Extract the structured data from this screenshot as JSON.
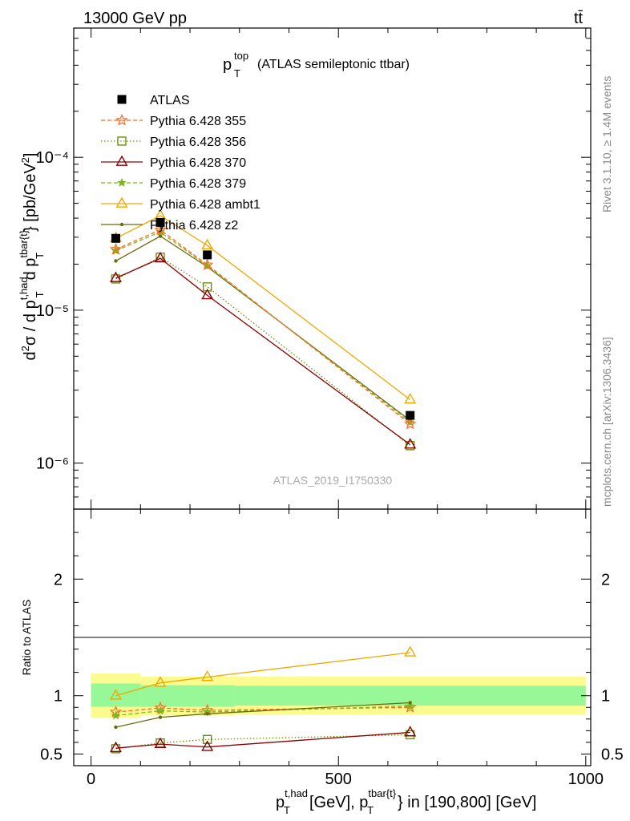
{
  "header": {
    "energy": "13000 GeV pp",
    "process": "tt̄",
    "title_main": "p",
    "title_sup": "top",
    "title_sub": "T",
    "title_rest": "(ATLAS semileptonic ttbar)"
  },
  "side_labels": {
    "rivet": "Rivet 3.1.10, ≥ 1.4M events",
    "mcplots": "mcplots.cern.ch [arXiv:1306.3436]"
  },
  "analysis_id": "ATLAS_2019_I1750330",
  "colors": {
    "data": "#000000",
    "p355": "#ff6820",
    "p356": "#6b8e10",
    "p370": "#8b0000",
    "p379": "#7eb520",
    "ambt1": "#f0a800",
    "z2": "#6b6b10",
    "band_inner": "#98f898",
    "band_outer": "#fbfb90"
  },
  "chart_data": [
    {
      "type": "line",
      "panel": "main",
      "yscale": "log",
      "ylabel": "d²σ / d p_T^{t,had} d p_T^{tbar{t}} [pb/GeV²]",
      "xlim": [
        -35,
        1010
      ],
      "ylim": [
        5e-07,
        0.0007
      ],
      "ytick_labels": [
        "10⁻⁴",
        "10⁻⁵",
        "10⁻⁶"
      ],
      "legend_position": "top-left",
      "x": [
        50,
        140,
        235,
        645
      ],
      "series": [
        {
          "key": "data",
          "name": "ATLAS",
          "marker": "square",
          "values": [
            2.95e-05,
            3.75e-05,
            2.3e-05,
            2.05e-06
          ]
        },
        {
          "key": "p355",
          "name": "Pythia 6.428 355",
          "marker": "star-open",
          "dash": "dashed",
          "values": [
            2.5e-05,
            3.35e-05,
            1.98e-05,
            1.8e-06
          ]
        },
        {
          "key": "p356",
          "name": "Pythia 6.428 356",
          "marker": "square-open",
          "dash": "dotted",
          "values": [
            1.6e-05,
            2.22e-05,
            1.42e-05,
            1.3e-06
          ]
        },
        {
          "key": "p370",
          "name": "Pythia 6.428 370",
          "marker": "triangle-open",
          "dash": "solid",
          "values": [
            1.62e-05,
            2.18e-05,
            1.25e-05,
            1.32e-06
          ]
        },
        {
          "key": "p379",
          "name": "Pythia 6.428 379",
          "marker": "star-filled",
          "dash": "dashed",
          "values": [
            2.45e-05,
            3.25e-05,
            1.95e-05,
            1.85e-06
          ]
        },
        {
          "key": "ambt1",
          "name": "Pythia 6.428 ambt1",
          "marker": "triangle-open",
          "dash": "solid",
          "values": [
            2.95e-05,
            4.15e-05,
            2.65e-05,
            2.6e-06
          ]
        },
        {
          "key": "z2",
          "name": "Pythia 6.428 z2",
          "marker": "dot",
          "dash": "solid",
          "values": [
            2.1e-05,
            3.05e-05,
            1.92e-05,
            1.9e-06
          ]
        }
      ]
    },
    {
      "type": "line",
      "panel": "ratio",
      "ylabel": "Ratio to ATLAS",
      "xlabel": "p_T^{t,had} [GeV], p_T^{tbar{t}} in [190,800] [GeV]",
      "xlim": [
        -35,
        1010
      ],
      "ylim": [
        0.4,
        2.6
      ],
      "x_ticks": [
        0,
        500,
        1000
      ],
      "ytick_labels": [
        "2",
        "1",
        "0.5"
      ],
      "x": [
        50,
        140,
        235,
        645
      ],
      "bands": {
        "edges": [
          0,
          100,
          290,
          1000
        ],
        "inner_lo": [
          0.905,
          0.905,
          0.915
        ],
        "inner_hi": [
          1.105,
          1.09,
          1.085
        ],
        "outer_lo": [
          0.81,
          0.83,
          0.835
        ],
        "outer_hi": [
          1.19,
          1.165,
          1.165
        ]
      },
      "series": [
        {
          "key": "p355",
          "values": [
            0.86,
            0.895,
            0.875,
            0.9
          ]
        },
        {
          "key": "p356",
          "values": [
            0.545,
            0.595,
            0.625,
            0.665
          ]
        },
        {
          "key": "p370",
          "values": [
            0.55,
            0.585,
            0.56,
            0.685
          ]
        },
        {
          "key": "p379",
          "values": [
            0.83,
            0.87,
            0.86,
            0.91
          ]
        },
        {
          "key": "ambt1",
          "values": [
            1.0,
            1.11,
            1.16,
            1.37
          ]
        },
        {
          "key": "z2",
          "values": [
            0.73,
            0.815,
            0.845,
            0.94
          ]
        }
      ]
    }
  ]
}
